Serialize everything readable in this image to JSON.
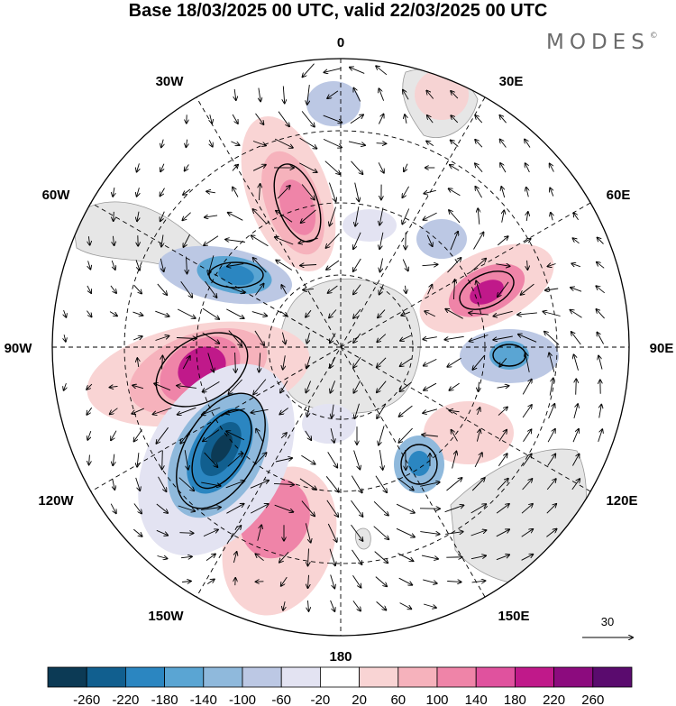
{
  "title": "Base 18/03/2025 00 UTC, valid 22/03/2025 00 UTC",
  "logo": "MODES",
  "logo_mark": "©",
  "longitude_labels": {
    "n": "0",
    "ne": "30E",
    "nee": "60E",
    "e": "90E",
    "see": "120E",
    "se": "150E",
    "s": "180",
    "sw": "150W",
    "sww": "120W",
    "w": "90W",
    "nww": "60W",
    "nw": "30W"
  },
  "vector_reference": "30",
  "colorbar": {
    "labels": [
      "-260",
      "-220",
      "-180",
      "-140",
      "-100",
      "-60",
      "-20",
      "20",
      "60",
      "100",
      "140",
      "180",
      "220",
      "260"
    ],
    "colors": [
      "#0c3a55",
      "#115f8f",
      "#2b86c1",
      "#5aa5d3",
      "#8fb9dc",
      "#bcc8e4",
      "#e3e3f2",
      "#ffffff",
      "#f9d4d4",
      "#f6b2bc",
      "#ef84a8",
      "#e0529e",
      "#c0198a",
      "#8c0b7e",
      "#5a0b6e"
    ]
  }
}
